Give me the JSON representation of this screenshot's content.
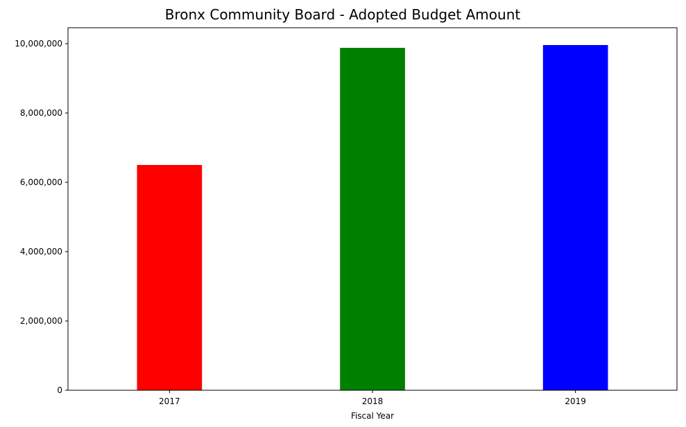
{
  "chart_data": {
    "type": "bar",
    "title": "Bronx Community Board - Adopted Budget Amount",
    "xlabel": "Fiscal Year",
    "ylabel": "",
    "categories": [
      "2017",
      "2018",
      "2019"
    ],
    "values": [
      6500000,
      9880000,
      9960000
    ],
    "colors": [
      "#ff0000",
      "#008000",
      "#0000ff"
    ],
    "ylim": [
      0,
      10460000
    ],
    "yticks": [
      0,
      2000000,
      4000000,
      6000000,
      8000000,
      10000000
    ],
    "ytick_labels": [
      "0",
      "2,000,000",
      "4,000,000",
      "6,000,000",
      "8,000,000",
      "10,000,000"
    ],
    "grid": false,
    "legend": "none"
  }
}
